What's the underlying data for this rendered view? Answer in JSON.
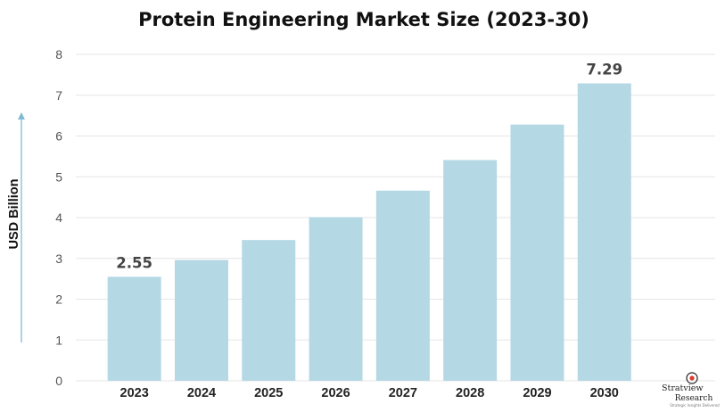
{
  "chart_data": {
    "type": "bar",
    "title": "Protein Engineering Market Size (2023-30)",
    "ylabel": "USD Billion",
    "xlabel": "",
    "categories": [
      "2023",
      "2024",
      "2025",
      "2026",
      "2027",
      "2028",
      "2029",
      "2030"
    ],
    "values": [
      2.55,
      2.96,
      3.45,
      4.01,
      4.66,
      5.41,
      6.28,
      7.29
    ],
    "data_labels": [
      {
        "category": "2023",
        "text": "2.55"
      },
      {
        "category": "2030",
        "text": "7.29"
      }
    ],
    "yticks": [
      "0",
      "1",
      "2",
      "3",
      "4",
      "5",
      "6",
      "7",
      "8"
    ],
    "ylim": [
      0,
      8
    ],
    "grid": true,
    "bar_color": "#b5d8e5",
    "grid_color": "#e6e6e6",
    "axis_arrow_color": "#7fb9d4"
  },
  "logo": {
    "line1": "Stratview",
    "line2": "Research",
    "tagline": "Strategic Insights Delivered",
    "accent_color": "#e03a2f"
  }
}
